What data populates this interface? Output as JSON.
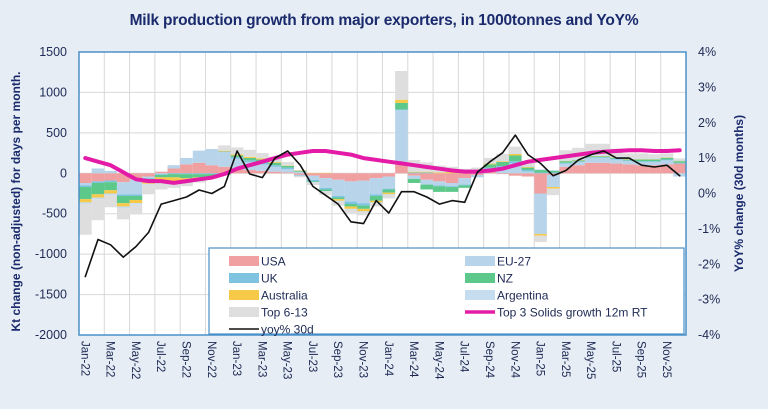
{
  "title": "Milk production growth from major exporters, in 1000tonnes and YoY%",
  "chart_data": {
    "type": "bar",
    "title": "Milk production growth from major exporters, in 1000tonnes and YoY%",
    "xlabel": "",
    "ylabel": "Kt change (non-adjusted) for days per month.",
    "y2label": "YoY% change (30d months)",
    "ylim": [
      -2000,
      1500
    ],
    "y2lim": [
      -4,
      4
    ],
    "yticks": [
      "1500",
      "1000",
      "500",
      "0",
      "-500",
      "-1000",
      "-1500",
      "-2000"
    ],
    "y2ticks": [
      "4%",
      "3%",
      "2%",
      "1%",
      "0%",
      "-1%",
      "-2%",
      "-3%",
      "-4%"
    ],
    "grid": true,
    "legend_position": "bottom-center",
    "categories": [
      "Jan-22",
      "Feb-22",
      "Mar-22",
      "Apr-22",
      "May-22",
      "Jun-22",
      "Jul-22",
      "Aug-22",
      "Sep-22",
      "Oct-22",
      "Nov-22",
      "Dec-22",
      "Jan-23",
      "Feb-23",
      "Mar-23",
      "Apr-23",
      "May-23",
      "Jun-23",
      "Jul-23",
      "Aug-23",
      "Sep-23",
      "Oct-23",
      "Nov-23",
      "Dec-23",
      "Jan-24",
      "Feb-24",
      "Mar-24",
      "Apr-24",
      "May-24",
      "Jun-24",
      "Jul-24",
      "Aug-24",
      "Sep-24",
      "Oct-24",
      "Nov-24",
      "Dec-24",
      "Jan-25",
      "Feb-25",
      "Mar-25",
      "Apr-25",
      "May-25",
      "Jun-25",
      "Jul-25",
      "Aug-25",
      "Sep-25",
      "Oct-25",
      "Nov-25",
      "Dec-25"
    ],
    "xtick_labels": [
      "Jan-22",
      "Mar-22",
      "May-22",
      "Jul-22",
      "Sep-22",
      "Nov-22",
      "Jan-23",
      "Mar-23",
      "May-23",
      "Jul-23",
      "Sep-23",
      "Nov-23",
      "Jan-24",
      "Mar-24",
      "May-24",
      "Jul-24",
      "Sep-24",
      "Nov-24",
      "Jan-25",
      "Mar-25",
      "May-25",
      "Jul-25",
      "Sep-25",
      "Nov-25"
    ],
    "series": [
      {
        "name": "USA",
        "type": "bar",
        "axis": "left",
        "color": "#f0a0a0",
        "values": [
          -120,
          -100,
          -90,
          -110,
          -80,
          -40,
          20,
          60,
          110,
          130,
          100,
          80,
          60,
          40,
          30,
          20,
          10,
          -20,
          -30,
          -60,
          -80,
          -100,
          -90,
          -60,
          -40,
          130,
          -30,
          -80,
          -100,
          -120,
          -60,
          -20,
          20,
          -10,
          -30,
          -40,
          -250,
          -20,
          80,
          100,
          130,
          130,
          120,
          110,
          100,
          100,
          110,
          120
        ]
      },
      {
        "name": "EU-27",
        "type": "bar",
        "axis": "left",
        "color": "#b8d4ea",
        "values": [
          -30,
          60,
          30,
          -150,
          -180,
          -20,
          -10,
          40,
          80,
          150,
          200,
          180,
          120,
          100,
          80,
          60,
          40,
          20,
          -50,
          -120,
          -200,
          -250,
          -280,
          -200,
          -150,
          650,
          -40,
          -60,
          -50,
          -40,
          -80,
          -30,
          30,
          60,
          120,
          20,
          -500,
          -150,
          40,
          40,
          60,
          60,
          50,
          40,
          40,
          40,
          50,
          -40
        ]
      },
      {
        "name": "UK",
        "type": "bar",
        "axis": "left",
        "color": "#7ec3e0",
        "values": [
          -20,
          -20,
          -20,
          -20,
          -20,
          -10,
          -10,
          -10,
          -10,
          -10,
          -10,
          10,
          20,
          20,
          20,
          20,
          20,
          -10,
          -20,
          -20,
          -20,
          -30,
          -30,
          -20,
          -10,
          10,
          10,
          10,
          -10,
          -10,
          -10,
          10,
          20,
          30,
          30,
          20,
          10,
          10,
          10,
          10,
          10,
          10,
          10,
          10,
          10,
          10,
          10,
          10
        ]
      },
      {
        "name": "NZ",
        "type": "bar",
        "axis": "left",
        "color": "#5cc98a",
        "values": [
          -150,
          -140,
          -100,
          -90,
          -50,
          -20,
          -30,
          -40,
          -50,
          -40,
          -30,
          -20,
          20,
          30,
          40,
          30,
          20,
          10,
          -10,
          -20,
          -20,
          -30,
          -40,
          -60,
          -40,
          80,
          -50,
          -60,
          -70,
          -60,
          -30,
          10,
          40,
          50,
          70,
          30,
          30,
          20,
          20,
          10,
          10,
          10,
          10,
          10,
          20,
          20,
          20,
          20
        ]
      },
      {
        "name": "Australia",
        "type": "bar",
        "axis": "left",
        "color": "#f7c948",
        "values": [
          -40,
          -40,
          -40,
          -40,
          -40,
          -40,
          -40,
          -60,
          -50,
          -40,
          -20,
          10,
          15,
          15,
          15,
          10,
          5,
          5,
          5,
          5,
          -20,
          -30,
          -30,
          -20,
          -20,
          40,
          10,
          10,
          10,
          15,
          10,
          5,
          10,
          10,
          20,
          10,
          -20,
          -20,
          5,
          5,
          5,
          5,
          5,
          5,
          5,
          5,
          5,
          5
        ]
      },
      {
        "name": "Argentina",
        "type": "bar",
        "axis": "left",
        "color": "#c6dcef",
        "values": [
          -20,
          -20,
          -20,
          -20,
          -20,
          -10,
          -10,
          -10,
          -10,
          -5,
          -5,
          5,
          5,
          5,
          5,
          5,
          5,
          5,
          -5,
          -5,
          -10,
          -10,
          -10,
          -10,
          -10,
          5,
          5,
          5,
          5,
          5,
          5,
          5,
          10,
          10,
          10,
          10,
          10,
          10,
          10,
          10,
          10,
          10,
          10,
          10,
          10,
          10,
          10,
          10
        ]
      },
      {
        "name": "Top 6-13",
        "type": "bar",
        "axis": "left",
        "color": "#dedede",
        "values": [
          -380,
          -260,
          -150,
          -140,
          -120,
          -120,
          -100,
          -60,
          -40,
          -20,
          0,
          60,
          80,
          80,
          60,
          60,
          40,
          -20,
          -30,
          -40,
          -50,
          -40,
          -40,
          -40,
          -40,
          350,
          140,
          110,
          80,
          60,
          40,
          40,
          60,
          80,
          80,
          60,
          -80,
          -80,
          120,
          140,
          140,
          140,
          100,
          60,
          60,
          50,
          40,
          20
        ]
      },
      {
        "name": "Top 3 Solids growth 12m RT",
        "type": "line",
        "axis": "right",
        "color": "#e31ba6",
        "values": [
          1.0,
          0.9,
          0.8,
          0.6,
          0.4,
          0.35,
          0.35,
          0.3,
          0.35,
          0.4,
          0.45,
          0.55,
          0.7,
          0.8,
          0.9,
          1.0,
          1.1,
          1.15,
          1.2,
          1.2,
          1.15,
          1.1,
          1.0,
          0.95,
          0.9,
          0.85,
          0.8,
          0.75,
          0.7,
          0.65,
          0.62,
          0.62,
          0.65,
          0.7,
          0.8,
          0.9,
          0.95,
          1.0,
          1.05,
          1.1,
          1.15,
          1.18,
          1.2,
          1.22,
          1.22,
          1.2,
          1.2,
          1.22
        ]
      },
      {
        "name": "yoy% 30d",
        "type": "line",
        "axis": "right",
        "color": "#111111",
        "values": [
          -2.35,
          -1.3,
          -1.45,
          -1.8,
          -1.5,
          -1.1,
          -0.3,
          -0.2,
          -0.1,
          0.1,
          0.0,
          0.2,
          1.2,
          0.55,
          0.45,
          1.0,
          1.2,
          0.8,
          0.2,
          -0.05,
          -0.3,
          -0.8,
          -0.85,
          -0.2,
          -0.55,
          0.05,
          0.05,
          -0.1,
          -0.3,
          -0.2,
          -0.25,
          0.6,
          0.9,
          1.15,
          1.65,
          1.1,
          0.85,
          0.5,
          0.65,
          0.95,
          1.1,
          1.2,
          1.0,
          1.0,
          0.8,
          0.75,
          0.8,
          0.5
        ]
      }
    ]
  },
  "legend": [
    {
      "label": "USA",
      "kind": "bar",
      "color": "#f0a0a0"
    },
    {
      "label": "EU-27",
      "kind": "bar",
      "color": "#b8d4ea"
    },
    {
      "label": "UK",
      "kind": "bar",
      "color": "#7ec3e0"
    },
    {
      "label": "NZ",
      "kind": "bar",
      "color": "#5cc98a"
    },
    {
      "label": "Australia",
      "kind": "bar",
      "color": "#f7c948"
    },
    {
      "label": "Argentina",
      "kind": "bar",
      "color": "#c6dcef"
    },
    {
      "label": "Top 6-13",
      "kind": "bar",
      "color": "#dedede"
    },
    {
      "label": "Top 3 Solids growth 12m RT",
      "kind": "thickline",
      "color": "#e31ba6"
    },
    {
      "label": "yoy% 30d",
      "kind": "line",
      "color": "#111111"
    }
  ]
}
